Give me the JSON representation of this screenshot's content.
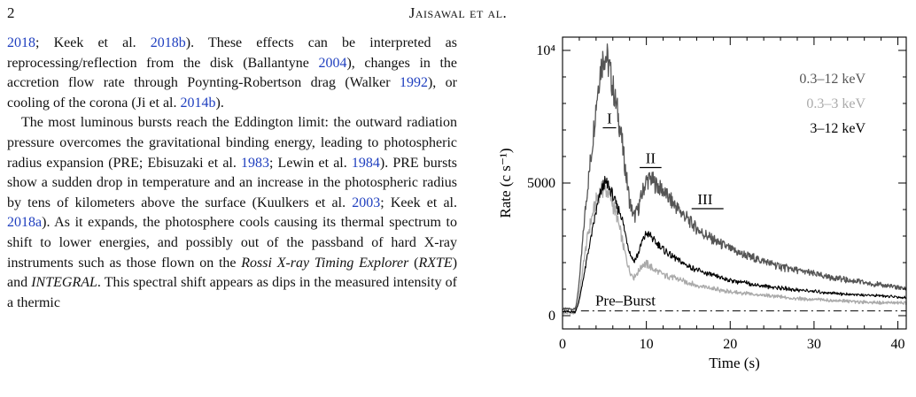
{
  "header": {
    "page_number": "2",
    "running_head": "Jaisawal et al."
  },
  "text": {
    "p1": [
      {
        "t": "2018",
        "c": true
      },
      {
        "t": "; Keek et al. "
      },
      {
        "t": "2018b",
        "c": true
      },
      {
        "t": "). These effects can be interpreted as reprocessing/reflection from the disk (Ballantyne "
      },
      {
        "t": "2004",
        "c": true
      },
      {
        "t": "), changes in the accretion flow rate through Poynting-Robertson drag (Walker "
      },
      {
        "t": "1992",
        "c": true
      },
      {
        "t": "), or cooling of the corona (Ji et al. "
      },
      {
        "t": "2014b",
        "c": true
      },
      {
        "t": ")."
      }
    ],
    "p2": [
      {
        "t": "The most luminous bursts reach the Eddington limit: the outward radiation pressure overcomes the gravitational binding energy, leading to photospheric radius expansion (PRE; Ebisuzaki et al. "
      },
      {
        "t": "1983",
        "c": true
      },
      {
        "t": "; Lewin et al. "
      },
      {
        "t": "1984",
        "c": true
      },
      {
        "t": "). PRE bursts show a sudden drop in temperature and an increase in the photospheric radius by tens of kilometers above the surface (Kuulkers et al. "
      },
      {
        "t": "2003",
        "c": true
      },
      {
        "t": "; Keek et al. "
      },
      {
        "t": "2018a",
        "c": true
      },
      {
        "t": "). As it expands, the photosphere cools causing its thermal spectrum to shift to lower energies, and possibly out of the passband of hard X-ray instruments such as those flown on the "
      },
      {
        "t": "Rossi X-ray Timing Explorer",
        "i": true
      },
      {
        "t": " ("
      },
      {
        "t": "RXTE",
        "i": true
      },
      {
        "t": ") and "
      },
      {
        "t": "INTEGRAL",
        "i": true
      },
      {
        "t": ". This spectral shift appears as dips in the measured intensity of a thermic"
      }
    ]
  },
  "chart_data": {
    "type": "line",
    "xlabel": "Time (s)",
    "ylabel": "Rate (c s⁻¹)",
    "xlim": [
      0,
      41
    ],
    "ylim": [
      -500,
      10500
    ],
    "x_ticks": [
      0,
      10,
      20,
      30,
      40
    ],
    "y_ticks": [
      {
        "value": 0,
        "label": "0"
      },
      {
        "value": 5000,
        "label": "5000"
      },
      {
        "value": 10000,
        "label": "10⁴"
      }
    ],
    "legend": [
      "0.3–12 keV",
      "0.3–3 keV",
      "3–12 keV"
    ],
    "legend_position": "top-right",
    "series": [
      {
        "name": "0.3–12 keV",
        "color": "#555555",
        "x": [
          0,
          1.5,
          1.8,
          2.2,
          2.6,
          3,
          3.5,
          4,
          4.5,
          5,
          5.5,
          6,
          6.5,
          7,
          7.5,
          8,
          8.5,
          9,
          9.5,
          10,
          10.5,
          11,
          12,
          13,
          14,
          15,
          16,
          17,
          18,
          20,
          22,
          24,
          26,
          28,
          30,
          32,
          34,
          36,
          38,
          40,
          41
        ],
        "y": [
          250,
          250,
          700,
          2000,
          3600,
          4900,
          6300,
          8000,
          9300,
          9900,
          9500,
          8600,
          7800,
          6800,
          5500,
          4300,
          3700,
          4000,
          4600,
          5100,
          5150,
          5000,
          4700,
          4300,
          3950,
          3600,
          3300,
          3050,
          2850,
          2500,
          2250,
          2050,
          1850,
          1700,
          1570,
          1450,
          1340,
          1240,
          1150,
          1060,
          1020
        ]
      },
      {
        "name": "0.3–3 keV",
        "color": "#aaaaaa",
        "x": [
          0,
          1.5,
          1.8,
          2.2,
          2.6,
          3,
          3.5,
          4,
          4.5,
          5,
          5.5,
          6,
          6.5,
          7,
          7.5,
          8,
          8.5,
          9,
          9.5,
          10,
          10.5,
          11,
          12,
          13,
          14,
          15,
          16,
          17,
          18,
          20,
          22,
          24,
          26,
          28,
          30,
          32,
          34,
          36,
          38,
          40,
          41
        ],
        "y": [
          100,
          100,
          400,
          1200,
          2200,
          3000,
          3700,
          4300,
          4700,
          4800,
          4600,
          4200,
          3700,
          3000,
          2300,
          1700,
          1450,
          1650,
          1900,
          1950,
          1850,
          1700,
          1550,
          1450,
          1350,
          1250,
          1150,
          1080,
          1000,
          900,
          820,
          760,
          700,
          650,
          610,
          570,
          540,
          510,
          490,
          480,
          470
        ]
      },
      {
        "name": "3–12 keV",
        "color": "#000000",
        "x": [
          0,
          1.5,
          1.8,
          2.2,
          2.6,
          3,
          3.5,
          4,
          4.5,
          5,
          5.5,
          6,
          6.5,
          7,
          7.5,
          8,
          8.5,
          9,
          9.5,
          10,
          10.5,
          11,
          12,
          13,
          14,
          15,
          16,
          17,
          18,
          20,
          22,
          24,
          26,
          28,
          30,
          32,
          34,
          36,
          38,
          40,
          41
        ],
        "y": [
          150,
          150,
          350,
          900,
          1600,
          2300,
          3100,
          3900,
          4600,
          5000,
          4900,
          4500,
          4100,
          3800,
          3100,
          2400,
          2050,
          2300,
          2800,
          3100,
          3000,
          2800,
          2500,
          2250,
          2050,
          1880,
          1720,
          1600,
          1500,
          1340,
          1220,
          1120,
          1040,
          970,
          910,
          860,
          810,
          770,
          740,
          700,
          680
        ]
      }
    ],
    "preburst_level": 180,
    "annotations": [
      {
        "text": "I",
        "x": 5.6,
        "y": 7250,
        "bar": [
          4.8,
          6.4
        ]
      },
      {
        "text": "II",
        "x": 10.5,
        "y": 5750,
        "bar": [
          9.2,
          11.8
        ]
      },
      {
        "text": "III",
        "x": 17,
        "y": 4200,
        "bar": [
          15.4,
          19.2
        ]
      },
      {
        "text": "Pre–Burst",
        "x": 7.5,
        "y": 380
      }
    ]
  }
}
